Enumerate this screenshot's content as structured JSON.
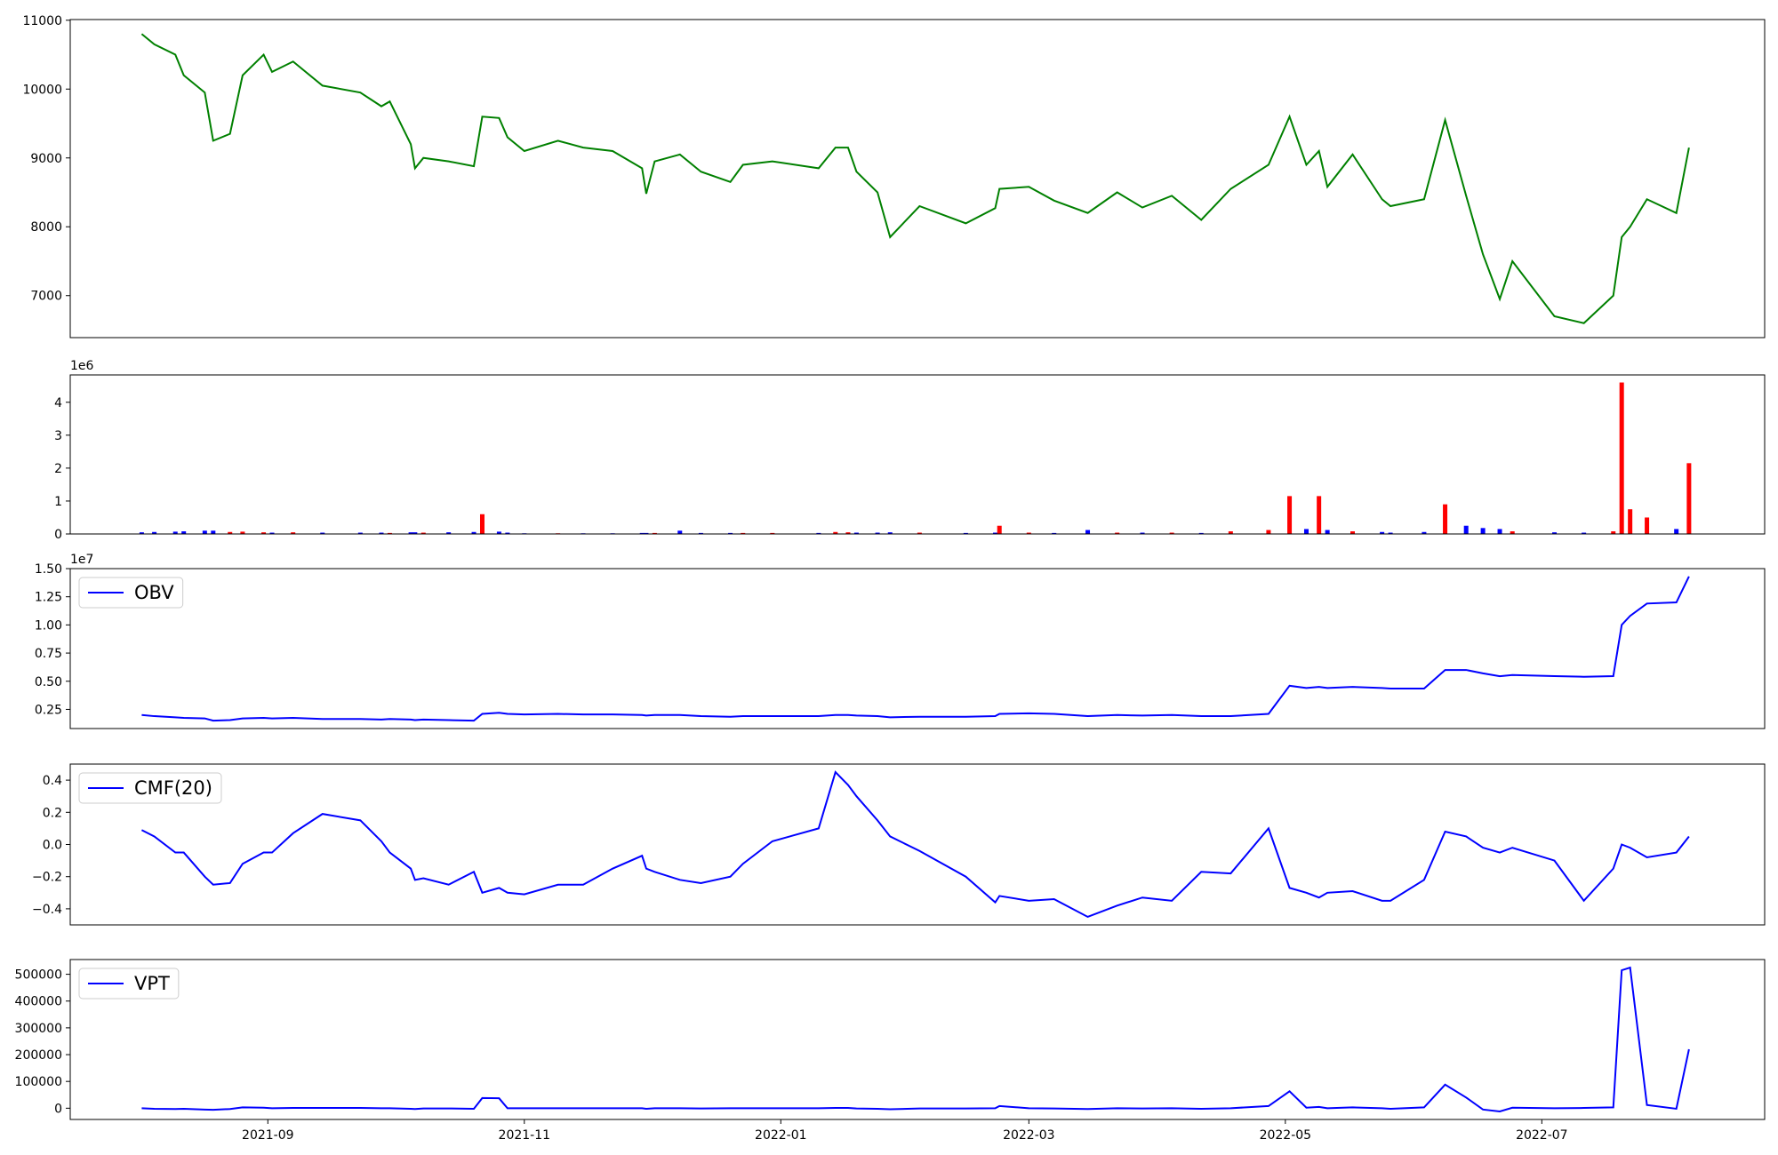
{
  "chart_data": [
    {
      "type": "line",
      "x": [
        "2021-08-02",
        "2021-08-05",
        "2021-08-10",
        "2021-08-12",
        "2021-08-17",
        "2021-08-19",
        "2021-08-23",
        "2021-08-26",
        "2021-08-31",
        "2021-09-02",
        "2021-09-07",
        "2021-09-14",
        "2021-09-23",
        "2021-09-28",
        "2021-09-30",
        "2021-10-05",
        "2021-10-06",
        "2021-10-08",
        "2021-10-14",
        "2021-10-20",
        "2021-10-22",
        "2021-10-26",
        "2021-10-28",
        "2021-11-01",
        "2021-11-09",
        "2021-11-15",
        "2021-11-22",
        "2021-11-29",
        "2021-11-30",
        "2021-12-02",
        "2021-12-08",
        "2021-12-13",
        "2021-12-20",
        "2021-12-23",
        "2021-12-30",
        "2022-01-10",
        "2022-01-14",
        "2022-01-17",
        "2022-01-19",
        "2022-01-24",
        "2022-01-27",
        "2022-02-03",
        "2022-02-14",
        "2022-02-21",
        "2022-02-22",
        "2022-03-01",
        "2022-03-07",
        "2022-03-15",
        "2022-03-22",
        "2022-03-28",
        "2022-04-04",
        "2022-04-11",
        "2022-04-18",
        "2022-04-27",
        "2022-05-02",
        "2022-05-06",
        "2022-05-09",
        "2022-05-11",
        "2022-05-17",
        "2022-05-24",
        "2022-05-26",
        "2022-06-03",
        "2022-06-08",
        "2022-06-13",
        "2022-06-17",
        "2022-06-21",
        "2022-06-24",
        "2022-07-04",
        "2022-07-11",
        "2022-07-18",
        "2022-07-20",
        "2022-07-22",
        "2022-07-26",
        "2022-08-02",
        "2022-08-05"
      ],
      "series": [
        {
          "color": "green",
          "values": [
            10800,
            10650,
            10500,
            10200,
            9950,
            9250,
            9350,
            10200,
            10500,
            10250,
            10400,
            10050,
            9950,
            9750,
            9820,
            9200,
            8850,
            9000,
            8950,
            8880,
            9600,
            9580,
            9300,
            9100,
            9250,
            9150,
            9100,
            8850,
            8480,
            8950,
            9050,
            8800,
            8650,
            8900,
            8950,
            8850,
            9150,
            9150,
            8800,
            8500,
            7850,
            8300,
            8050,
            8270,
            8550,
            8580,
            8380,
            8200,
            8500,
            8280,
            8450,
            8100,
            8550,
            8900,
            9600,
            8900,
            9100,
            8580,
            9050,
            8400,
            8300,
            8400,
            9550,
            8450,
            7600,
            6950,
            7500,
            6700,
            6600,
            7000,
            7850,
            8000,
            8400,
            8200,
            9150
          ]
        }
      ],
      "xlim": [
        "2021-07-16",
        "2022-08-23"
      ],
      "ylim": [
        6390,
        11010
      ],
      "yticks": [
        7000,
        8000,
        9000,
        10000,
        11000
      ]
    },
    {
      "type": "bar",
      "x": [
        "2021-08-02",
        "2021-08-05",
        "2021-08-10",
        "2021-08-12",
        "2021-08-17",
        "2021-08-19",
        "2021-08-23",
        "2021-08-26",
        "2021-08-31",
        "2021-09-02",
        "2021-09-07",
        "2021-09-14",
        "2021-09-23",
        "2021-09-28",
        "2021-09-30",
        "2021-10-05",
        "2021-10-06",
        "2021-10-08",
        "2021-10-14",
        "2021-10-20",
        "2021-10-22",
        "2021-10-26",
        "2021-10-28",
        "2021-11-01",
        "2021-11-09",
        "2021-11-15",
        "2021-11-22",
        "2021-11-29",
        "2021-11-30",
        "2021-12-02",
        "2021-12-08",
        "2021-12-13",
        "2021-12-20",
        "2021-12-23",
        "2021-12-30",
        "2022-01-10",
        "2022-01-14",
        "2022-01-17",
        "2022-01-19",
        "2022-01-24",
        "2022-01-27",
        "2022-02-03",
        "2022-02-14",
        "2022-02-21",
        "2022-02-22",
        "2022-03-01",
        "2022-03-07",
        "2022-03-15",
        "2022-03-22",
        "2022-03-28",
        "2022-04-04",
        "2022-04-11",
        "2022-04-18",
        "2022-04-27",
        "2022-05-02",
        "2022-05-06",
        "2022-05-09",
        "2022-05-11",
        "2022-05-17",
        "2022-05-24",
        "2022-05-26",
        "2022-06-03",
        "2022-06-08",
        "2022-06-13",
        "2022-06-17",
        "2022-06-21",
        "2022-06-24",
        "2022-07-04",
        "2022-07-11",
        "2022-07-18",
        "2022-07-20",
        "2022-07-22",
        "2022-07-26",
        "2022-08-02",
        "2022-08-05"
      ],
      "series": [
        {
          "colors": [
            "blue",
            "blue",
            "blue",
            "blue",
            "blue",
            "blue",
            "red",
            "red",
            "red",
            "blue",
            "red",
            "blue",
            "blue",
            "blue",
            "red",
            "blue",
            "blue",
            "red",
            "blue",
            "blue",
            "red",
            "blue",
            "blue",
            "blue",
            "red",
            "blue",
            "blue",
            "blue",
            "blue",
            "red",
            "blue",
            "blue",
            "blue",
            "red",
            "red",
            "blue",
            "red",
            "red",
            "blue",
            "blue",
            "blue",
            "red",
            "blue",
            "blue",
            "red",
            "red",
            "blue",
            "blue",
            "red",
            "blue",
            "red",
            "blue",
            "red",
            "red",
            "red",
            "blue",
            "red",
            "blue",
            "red",
            "blue",
            "blue",
            "blue",
            "red",
            "blue",
            "blue",
            "blue",
            "red",
            "blue",
            "blue",
            "red",
            "red",
            "red",
            "red",
            "blue",
            "red"
          ],
          "values": [
            0.05,
            0.06,
            0.07,
            0.08,
            0.1,
            0.1,
            0.06,
            0.07,
            0.05,
            0.04,
            0.05,
            0.04,
            0.04,
            0.04,
            0.03,
            0.05,
            0.05,
            0.04,
            0.05,
            0.06,
            0.6,
            0.07,
            0.04,
            0.02,
            0.02,
            0.02,
            0.02,
            0.03,
            0.03,
            0.03,
            0.1,
            0.03,
            0.03,
            0.03,
            0.03,
            0.03,
            0.06,
            0.05,
            0.04,
            0.04,
            0.05,
            0.04,
            0.03,
            0.04,
            0.25,
            0.04,
            0.03,
            0.12,
            0.04,
            0.04,
            0.04,
            0.03,
            0.08,
            0.12,
            1.15,
            0.15,
            1.15,
            0.12,
            0.08,
            0.06,
            0.04,
            0.06,
            0.9,
            0.25,
            0.18,
            0.15,
            0.08,
            0.05,
            0.04,
            0.08,
            4.6,
            0.75,
            0.5,
            0.15,
            2.15
          ]
        }
      ],
      "offset_text": "1e6",
      "xlim": [
        "2021-07-16",
        "2022-08-23"
      ],
      "ylim": [
        0,
        4.83
      ],
      "yticks": [
        0,
        1,
        2,
        3,
        4
      ]
    },
    {
      "type": "line",
      "x": [
        "2021-08-02",
        "2021-08-05",
        "2021-08-10",
        "2021-08-12",
        "2021-08-17",
        "2021-08-19",
        "2021-08-23",
        "2021-08-26",
        "2021-08-31",
        "2021-09-02",
        "2021-09-07",
        "2021-09-14",
        "2021-09-23",
        "2021-09-28",
        "2021-09-30",
        "2021-10-05",
        "2021-10-06",
        "2021-10-08",
        "2021-10-14",
        "2021-10-20",
        "2021-10-22",
        "2021-10-26",
        "2021-10-28",
        "2021-11-01",
        "2021-11-09",
        "2021-11-15",
        "2021-11-22",
        "2021-11-29",
        "2021-11-30",
        "2021-12-02",
        "2021-12-08",
        "2021-12-13",
        "2021-12-20",
        "2021-12-23",
        "2021-12-30",
        "2022-01-10",
        "2022-01-14",
        "2022-01-17",
        "2022-01-19",
        "2022-01-24",
        "2022-01-27",
        "2022-02-03",
        "2022-02-14",
        "2022-02-21",
        "2022-02-22",
        "2022-03-01",
        "2022-03-07",
        "2022-03-15",
        "2022-03-22",
        "2022-03-28",
        "2022-04-04",
        "2022-04-11",
        "2022-04-18",
        "2022-04-27",
        "2022-05-02",
        "2022-05-06",
        "2022-05-09",
        "2022-05-11",
        "2022-05-17",
        "2022-05-24",
        "2022-05-26",
        "2022-06-03",
        "2022-06-08",
        "2022-06-13",
        "2022-06-17",
        "2022-06-21",
        "2022-06-24",
        "2022-07-04",
        "2022-07-11",
        "2022-07-18",
        "2022-07-20",
        "2022-07-22",
        "2022-07-26",
        "2022-08-02",
        "2022-08-05"
      ],
      "series": [
        {
          "name": "OBV",
          "color": "blue",
          "values": [
            0.2,
            0.19,
            0.18,
            0.175,
            0.17,
            0.15,
            0.155,
            0.17,
            0.175,
            0.17,
            0.175,
            0.165,
            0.165,
            0.16,
            0.165,
            0.16,
            0.155,
            0.16,
            0.155,
            0.15,
            0.21,
            0.22,
            0.21,
            0.205,
            0.21,
            0.205,
            0.205,
            0.2,
            0.195,
            0.2,
            0.2,
            0.19,
            0.185,
            0.19,
            0.19,
            0.19,
            0.2,
            0.2,
            0.195,
            0.19,
            0.18,
            0.185,
            0.185,
            0.19,
            0.21,
            0.215,
            0.21,
            0.19,
            0.2,
            0.195,
            0.2,
            0.19,
            0.19,
            0.21,
            0.46,
            0.44,
            0.45,
            0.44,
            0.45,
            0.44,
            0.435,
            0.435,
            0.6,
            0.6,
            0.57,
            0.545,
            0.555,
            0.545,
            0.54,
            0.545,
            1.0,
            1.08,
            1.19,
            1.2,
            1.43
          ]
        }
      ],
      "legend": "upper left",
      "offset_text": "1e7",
      "xlim": [
        "2021-07-16",
        "2022-08-23"
      ],
      "ylim": [
        0.08,
        1.5
      ],
      "yticks": [
        0.25,
        {
          "value": 0.5,
          "label": "0.50"
        },
        0.75,
        {
          "value": 1.0,
          "label": "1.00"
        },
        1.25,
        {
          "value": 1.5,
          "label": "1.50"
        }
      ]
    },
    {
      "type": "line",
      "x": [
        "2021-08-02",
        "2021-08-05",
        "2021-08-10",
        "2021-08-12",
        "2021-08-17",
        "2021-08-19",
        "2021-08-23",
        "2021-08-26",
        "2021-08-31",
        "2021-09-02",
        "2021-09-07",
        "2021-09-14",
        "2021-09-23",
        "2021-09-28",
        "2021-09-30",
        "2021-10-05",
        "2021-10-06",
        "2021-10-08",
        "2021-10-14",
        "2021-10-20",
        "2021-10-22",
        "2021-10-26",
        "2021-10-28",
        "2021-11-01",
        "2021-11-09",
        "2021-11-15",
        "2021-11-22",
        "2021-11-29",
        "2021-11-30",
        "2021-12-02",
        "2021-12-08",
        "2021-12-13",
        "2021-12-20",
        "2021-12-23",
        "2021-12-30",
        "2022-01-10",
        "2022-01-14",
        "2022-01-17",
        "2022-01-19",
        "2022-01-24",
        "2022-01-27",
        "2022-02-03",
        "2022-02-14",
        "2022-02-21",
        "2022-02-22",
        "2022-03-01",
        "2022-03-07",
        "2022-03-15",
        "2022-03-22",
        "2022-03-28",
        "2022-04-04",
        "2022-04-11",
        "2022-04-18",
        "2022-04-27",
        "2022-05-02",
        "2022-05-06",
        "2022-05-09",
        "2022-05-11",
        "2022-05-17",
        "2022-05-24",
        "2022-05-26",
        "2022-06-03",
        "2022-06-08",
        "2022-06-13",
        "2022-06-17",
        "2022-06-21",
        "2022-06-24",
        "2022-07-04",
        "2022-07-11",
        "2022-07-18",
        "2022-07-20",
        "2022-07-22",
        "2022-07-26",
        "2022-08-02",
        "2022-08-05"
      ],
      "series": [
        {
          "name": "CMF(20)",
          "color": "blue",
          "values": [
            0.09,
            0.05,
            -0.05,
            -0.05,
            -0.2,
            -0.25,
            -0.24,
            -0.12,
            -0.05,
            -0.05,
            0.07,
            0.19,
            0.15,
            0.02,
            -0.05,
            -0.15,
            -0.22,
            -0.21,
            -0.25,
            -0.17,
            -0.3,
            -0.27,
            -0.3,
            -0.31,
            -0.25,
            -0.25,
            -0.15,
            -0.07,
            -0.15,
            -0.17,
            -0.22,
            -0.24,
            -0.2,
            -0.12,
            0.02,
            0.1,
            0.45,
            0.37,
            0.3,
            0.15,
            0.05,
            -0.04,
            -0.2,
            -0.36,
            -0.32,
            -0.35,
            -0.34,
            -0.45,
            -0.38,
            -0.33,
            -0.35,
            -0.17,
            -0.18,
            0.1,
            -0.27,
            -0.3,
            -0.33,
            -0.3,
            -0.29,
            -0.35,
            -0.35,
            -0.22,
            0.08,
            0.05,
            -0.02,
            -0.05,
            -0.02,
            -0.1,
            -0.35,
            -0.15,
            0.0,
            -0.02,
            -0.08,
            -0.05,
            0.05
          ]
        }
      ],
      "legend": "upper left",
      "xlim": [
        "2021-07-16",
        "2022-08-23"
      ],
      "ylim": [
        -0.5,
        0.5
      ],
      "yticks": [
        {
          "value": -0.4,
          "label": "−0.4"
        },
        {
          "value": -0.2,
          "label": "−0.2"
        },
        {
          "value": 0,
          "label": "0.0"
        },
        0.2,
        0.4
      ]
    },
    {
      "type": "line",
      "x": [
        "2021-08-02",
        "2021-08-05",
        "2021-08-10",
        "2021-08-12",
        "2021-08-17",
        "2021-08-19",
        "2021-08-23",
        "2021-08-26",
        "2021-08-31",
        "2021-09-02",
        "2021-09-07",
        "2021-09-14",
        "2021-09-23",
        "2021-09-28",
        "2021-09-30",
        "2021-10-05",
        "2021-10-06",
        "2021-10-08",
        "2021-10-14",
        "2021-10-20",
        "2021-10-22",
        "2021-10-26",
        "2021-10-28",
        "2021-11-01",
        "2021-11-09",
        "2021-11-15",
        "2021-11-22",
        "2021-11-29",
        "2021-11-30",
        "2021-12-02",
        "2021-12-08",
        "2021-12-13",
        "2021-12-20",
        "2021-12-23",
        "2021-12-30",
        "2022-01-10",
        "2022-01-14",
        "2022-01-17",
        "2022-01-19",
        "2022-01-24",
        "2022-01-27",
        "2022-02-03",
        "2022-02-14",
        "2022-02-21",
        "2022-02-22",
        "2022-03-01",
        "2022-03-07",
        "2022-03-15",
        "2022-03-22",
        "2022-03-28",
        "2022-04-04",
        "2022-04-11",
        "2022-04-18",
        "2022-04-27",
        "2022-05-02",
        "2022-05-06",
        "2022-05-09",
        "2022-05-11",
        "2022-05-17",
        "2022-05-24",
        "2022-05-26",
        "2022-06-03",
        "2022-06-08",
        "2022-06-13",
        "2022-06-17",
        "2022-06-21",
        "2022-06-24",
        "2022-07-04",
        "2022-07-11",
        "2022-07-18",
        "2022-07-20",
        "2022-07-22",
        "2022-07-26",
        "2022-08-02",
        "2022-08-05"
      ],
      "series": [
        {
          "name": "VPT",
          "color": "blue",
          "values": [
            0,
            -2000,
            -3000,
            -2000,
            -5000,
            -6000,
            -3000,
            3000,
            2000,
            0,
            1000,
            1000,
            1000,
            0,
            0,
            -2000,
            -3000,
            -1000,
            -1000,
            -2000,
            38000,
            37000,
            0,
            0,
            0,
            0,
            0,
            0,
            -2000,
            0,
            0,
            -1000,
            0,
            0,
            0,
            0,
            1000,
            1000,
            -1000,
            -2000,
            -4000,
            -1000,
            -1000,
            0,
            8000,
            0,
            -1000,
            -3000,
            0,
            -1000,
            0,
            -2000,
            0,
            8000,
            63000,
            2000,
            5000,
            0,
            3000,
            0,
            -2000,
            3000,
            88000,
            40000,
            -5000,
            -12000,
            2000,
            0,
            1000,
            3000,
            515000,
            525000,
            12000,
            -2000,
            220000
          ]
        }
      ],
      "legend": "upper left",
      "xlim": [
        "2021-07-16",
        "2022-08-23"
      ],
      "ylim": [
        -42000,
        555000
      ],
      "yticks": [
        0,
        100000,
        200000,
        300000,
        400000,
        500000
      ],
      "xticks": [
        {
          "value": "2021-09-01",
          "label": "2021-09"
        },
        {
          "value": "2021-11-01",
          "label": "2021-11"
        },
        {
          "value": "2022-01-01",
          "label": "2022-01"
        },
        {
          "value": "2022-03-01",
          "label": "2022-03"
        },
        {
          "value": "2022-05-01",
          "label": "2022-05"
        },
        {
          "value": "2022-07-01",
          "label": "2022-07"
        }
      ]
    }
  ]
}
